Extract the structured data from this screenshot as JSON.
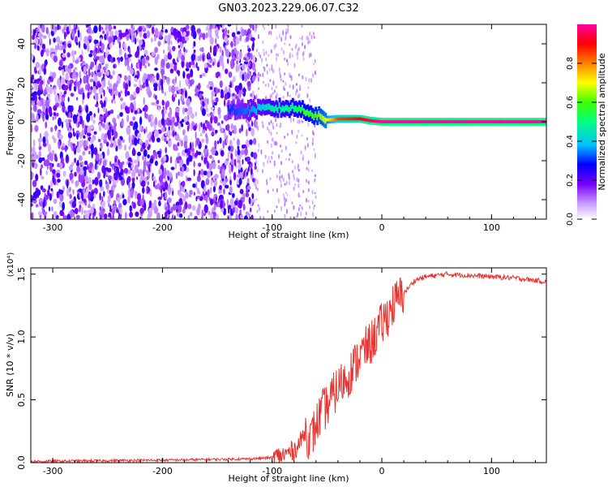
{
  "title": "GN03.2023.229.06.07.C32",
  "chart_data": [
    {
      "type": "heatmap",
      "xlabel": "Height of straight line (km)",
      "ylabel": "Frequency (Hz)",
      "xlim": [
        -320,
        150
      ],
      "ylim": [
        -50,
        50
      ],
      "xticks": [
        -300,
        -200,
        -100,
        0,
        100
      ],
      "yticks": [
        -40,
        -20,
        0,
        20,
        40
      ],
      "colorbar": {
        "label": "Normalized spectral amplitude",
        "range": [
          0,
          1
        ],
        "ticks": [
          "0.0",
          "0.2",
          "0.4",
          "0.6",
          "0.8"
        ],
        "colors": [
          "#ffffff",
          "#c89bff",
          "#7a00ff",
          "#0000ff",
          "#00c0ff",
          "#00ff80",
          "#40ff00",
          "#ffff00",
          "#ff8000",
          "#ff0000",
          "#ff00a0"
        ]
      },
      "main_signal": [
        {
          "x": -140,
          "freq": 6,
          "amp": 0.3
        },
        {
          "x": -120,
          "freq": 6,
          "amp": 0.35
        },
        {
          "x": -100,
          "freq": 7,
          "amp": 0.45
        },
        {
          "x": -80,
          "freq": 7,
          "amp": 0.5
        },
        {
          "x": -70,
          "freq": 6,
          "amp": 0.55
        },
        {
          "x": -60,
          "freq": 3,
          "amp": 0.6
        },
        {
          "x": -50,
          "freq": 1,
          "amp": 0.7
        },
        {
          "x": -40,
          "freq": 1.5,
          "amp": 0.85
        },
        {
          "x": -20,
          "freq": 1.5,
          "amp": 0.9
        },
        {
          "x": -10,
          "freq": 0.5,
          "amp": 0.95
        },
        {
          "x": 0,
          "freq": 0,
          "amp": 1.0
        },
        {
          "x": 150,
          "freq": 0,
          "amp": 1.0
        }
      ]
    },
    {
      "type": "line",
      "xlabel": "Height of straight line (km)",
      "ylabel": "SNR (10 * v/v)",
      "yscale_label": "(x10⁴)",
      "xlim": [
        -320,
        150
      ],
      "ylim": [
        0,
        1.55
      ],
      "xticks": [
        -300,
        -200,
        -100,
        0,
        100
      ],
      "yticks": [
        "0.0",
        "0.5",
        "1.0",
        "1.5"
      ],
      "series": [
        {
          "color": "#e8332e",
          "x": [
            -320,
            -200,
            -120,
            -100,
            -90,
            -80,
            -75,
            -70,
            -65,
            -60,
            -55,
            -50,
            -40,
            -30,
            -20,
            -10,
            0,
            10,
            20,
            30,
            40,
            60,
            80,
            100,
            120,
            150
          ],
          "y": [
            0.01,
            0.02,
            0.03,
            0.04,
            0.06,
            0.1,
            0.15,
            0.25,
            0.18,
            0.3,
            0.4,
            0.45,
            0.6,
            0.7,
            0.85,
            0.95,
            1.1,
            1.25,
            1.35,
            1.45,
            1.48,
            1.5,
            1.49,
            1.48,
            1.47,
            1.44
          ]
        }
      ]
    }
  ]
}
